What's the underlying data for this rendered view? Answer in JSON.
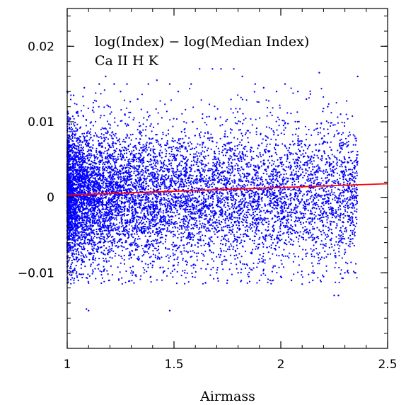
{
  "chart_data": {
    "type": "scatter",
    "xlabel": "Airmass",
    "ylabel": "",
    "xlim": [
      1.0,
      2.5
    ],
    "ylim": [
      -0.02,
      0.025
    ],
    "x_ticks": [
      1,
      1.5,
      2,
      2.5
    ],
    "x_tick_labels": [
      "1",
      "1.5",
      "2",
      "2.5"
    ],
    "y_ticks": [
      -0.01,
      0,
      0.01,
      0.02
    ],
    "y_tick_labels": [
      "−0.01",
      "0",
      "0.01",
      "0.02"
    ],
    "annotations": [
      "log(Index) − log(Median Index)",
      "Ca II H K"
    ],
    "grid": false,
    "legend": "none",
    "series": [
      {
        "kind": "scatter",
        "color": "#0000ff",
        "points": [
          [
            1.0,
            0.014
          ],
          [
            1.03,
            0.0135
          ],
          [
            1.05,
            -0.0068
          ],
          [
            1.08,
            0.0145
          ],
          [
            1.1,
            -0.015
          ],
          [
            1.12,
            -0.007
          ],
          [
            1.15,
            0.015
          ],
          [
            1.18,
            0.016
          ],
          [
            1.2,
            -0.0072
          ],
          [
            1.22,
            0.015
          ],
          [
            1.25,
            0.014
          ],
          [
            1.28,
            0.015
          ],
          [
            1.3,
            -0.008
          ],
          [
            1.33,
            0.013
          ],
          [
            1.35,
            -0.0085
          ],
          [
            1.38,
            0.015
          ],
          [
            1.4,
            -0.009
          ],
          [
            1.42,
            0.0155
          ],
          [
            1.45,
            -0.01
          ],
          [
            1.48,
            0.015
          ],
          [
            1.5,
            -0.009
          ],
          [
            1.52,
            0.014
          ],
          [
            1.55,
            -0.01
          ],
          [
            1.58,
            0.015
          ],
          [
            1.6,
            -0.009
          ],
          [
            1.62,
            0.017
          ],
          [
            1.65,
            -0.0095
          ],
          [
            1.68,
            0.017
          ],
          [
            1.7,
            -0.01
          ],
          [
            1.72,
            0.017
          ],
          [
            1.75,
            -0.011
          ],
          [
            1.78,
            0.017
          ],
          [
            1.8,
            -0.01
          ],
          [
            1.82,
            0.016
          ],
          [
            1.85,
            -0.0105
          ],
          [
            1.88,
            0.015
          ],
          [
            1.9,
            -0.011
          ],
          [
            1.92,
            0.0145
          ],
          [
            1.95,
            -0.011
          ],
          [
            1.98,
            0.014
          ],
          [
            2.0,
            -0.0105
          ],
          [
            2.02,
            0.015
          ],
          [
            2.05,
            -0.011
          ],
          [
            2.08,
            0.014
          ],
          [
            2.1,
            -0.0115
          ],
          [
            2.12,
            0.013
          ],
          [
            2.15,
            -0.011
          ],
          [
            2.18,
            0.0165
          ],
          [
            2.2,
            -0.0105
          ],
          [
            2.22,
            0.012
          ],
          [
            2.25,
            -0.013
          ],
          [
            2.28,
            0.011
          ],
          [
            2.3,
            -0.01
          ],
          [
            2.33,
            0.006
          ],
          [
            2.35,
            -0.01
          ],
          [
            2.36,
            0.016
          ],
          [
            1.48,
            -0.015
          ],
          [
            1.09,
            -0.0148
          ],
          [
            2.27,
            -0.013
          ],
          [
            1.27,
            0.011
          ]
        ]
      },
      {
        "kind": "line",
        "color": "#ff0000",
        "points": [
          [
            1.0,
            0.0003
          ],
          [
            2.5,
            0.0018
          ]
        ]
      }
    ]
  }
}
